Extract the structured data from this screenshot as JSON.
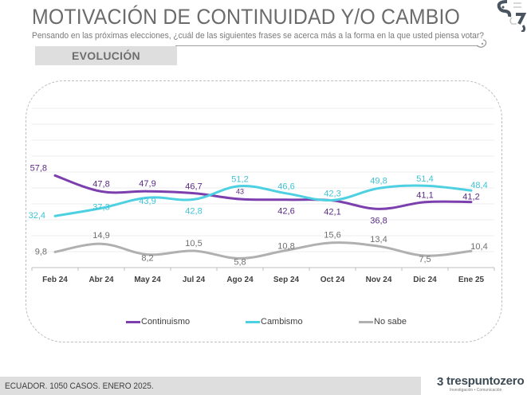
{
  "header": {
    "title": "MOTIVACIÓN DE CONTINUIDAD Y/O CAMBIO",
    "subtitle": "Pensando en las próximas elecciones, ¿cuál de las siguientes frases se acerca más a la forma en la que usted piensa votar?",
    "section_label": "EVOLUCIÓN"
  },
  "footer": {
    "note": "ECUADOR. 1050 CASOS. ENERO 2025.",
    "brand_mark": "3",
    "brand_name": "trespuntozero",
    "brand_tagline": "Investigación • Comunicación"
  },
  "colors": {
    "continuismo": "#7030A0",
    "cambismo": "#4DD0E1",
    "no_sabe": "#A6A6A6"
  },
  "chart_data": {
    "type": "line",
    "title": "MOTIVACIÓN DE CONTINUIDAD Y/O CAMBIO",
    "xlabel": "",
    "ylabel": "",
    "categories": [
      "Feb 24",
      "Abr 24",
      "May 24",
      "Jul 24",
      "Ago 24",
      "Sep 24",
      "Oct 24",
      "Nov 24",
      "Dic 24",
      "Ene 25"
    ],
    "ylim": [
      0,
      100
    ],
    "grid": true,
    "legend_position": "bottom",
    "series": [
      {
        "name": "Continuismo",
        "color": "#7030A0",
        "values": [
          57.8,
          47.8,
          47.9,
          46.7,
          43,
          42.6,
          42.1,
          36.8,
          41.1,
          41.2
        ],
        "labels": [
          "57,8",
          "47,8",
          "47,9",
          "46,7",
          "43",
          "42,6",
          "42,1",
          "36,8",
          "41,1",
          "41,2"
        ]
      },
      {
        "name": "Cambismo",
        "color": "#4DD0E1",
        "values": [
          32.4,
          37.3,
          43.9,
          42.8,
          51.2,
          46.6,
          42.3,
          49.8,
          51.4,
          48.4
        ],
        "labels": [
          "32,4",
          "37,3",
          "43,9",
          "42,8",
          "51,2",
          "46,6",
          "42,3",
          "49,8",
          "51,4",
          "48,4"
        ]
      },
      {
        "name": "No sabe",
        "color": "#A6A6A6",
        "values": [
          9.8,
          14.9,
          8.2,
          10.5,
          5.8,
          10.8,
          15.6,
          13.4,
          7.5,
          10.4
        ],
        "labels": [
          "9,8",
          "14,9",
          "8,2",
          "10,5",
          "5,8",
          "10,8",
          "15,6",
          "13,4",
          "7,5",
          "10,4"
        ]
      }
    ]
  }
}
